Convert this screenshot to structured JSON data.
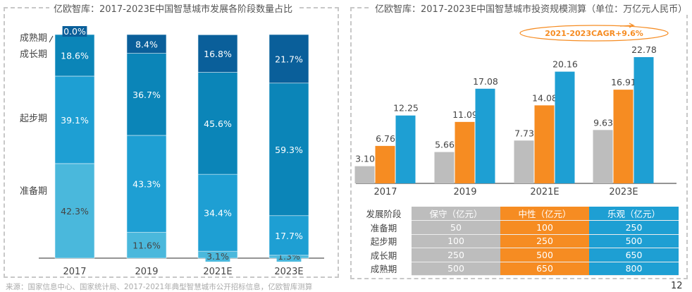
{
  "left_title": "亿欧智库：2017-2023E中国智慧城市发展各阶段数量占比",
  "right_title": "亿欧智库：2017-2023E中国智慧城市投资规模测算（单位：万亿元人民币）",
  "source": "来源：国家信息中心、国家统计局、2017-2021年典型智慧城市公开招标信息，亿欧智库测算",
  "page_number": "12",
  "chart_data": [
    {
      "type": "bar",
      "stacked": true,
      "unit": "%",
      "categories": [
        "2017",
        "2019",
        "2021E",
        "2023E"
      ],
      "series": [
        {
          "name": "准备期",
          "color": "#4ab8dc",
          "values": [
            42.3,
            11.6,
            3.1,
            1.3
          ]
        },
        {
          "name": "起步期",
          "color": "#1e9fd3",
          "values": [
            39.1,
            43.3,
            34.4,
            17.7
          ]
        },
        {
          "name": "成长期",
          "color": "#0b85b8",
          "values": [
            18.6,
            36.7,
            45.6,
            59.3
          ]
        },
        {
          "name": "成熟期",
          "color": "#0a5f9a",
          "values": [
            0.0,
            8.4,
            16.8,
            21.7
          ]
        }
      ],
      "data_labels": [
        [
          "42.3%",
          "39.1%",
          "18.6%",
          "0.0%"
        ],
        [
          "11.6%",
          "43.3%",
          "36.7%",
          "8.4%"
        ],
        [
          "3.1%",
          "34.4%",
          "45.6%",
          "16.8%"
        ],
        [
          "1.3%",
          "17.7%",
          "59.3%",
          "21.7%"
        ]
      ],
      "ylim": [
        0,
        100
      ]
    },
    {
      "type": "bar",
      "grouped": true,
      "categories": [
        "2017",
        "2019",
        "2021E",
        "2023E"
      ],
      "series": [
        {
          "color": "#bdbdbd",
          "values": [
            3.1,
            5.66,
            7.73,
            9.63
          ]
        },
        {
          "color": "#f68c22",
          "values": [
            6.76,
            11.09,
            14.08,
            16.91
          ]
        },
        {
          "color": "#1e9fd3",
          "values": [
            12.25,
            17.08,
            20.16,
            22.78
          ]
        }
      ],
      "annotation": "2021-2023CAGR+9.6%",
      "ylim": [
        0,
        23
      ]
    }
  ],
  "table": {
    "headers": [
      "发展阶段",
      "保守（亿元）",
      "中性（亿元）",
      "乐观（亿元）"
    ],
    "rows": [
      [
        "准备期",
        "50",
        "100",
        "250"
      ],
      [
        "起步期",
        "100",
        "250",
        "500"
      ],
      [
        "成长期",
        "250",
        "500",
        "650"
      ],
      [
        "成熟期",
        "500",
        "650",
        "800"
      ]
    ]
  }
}
